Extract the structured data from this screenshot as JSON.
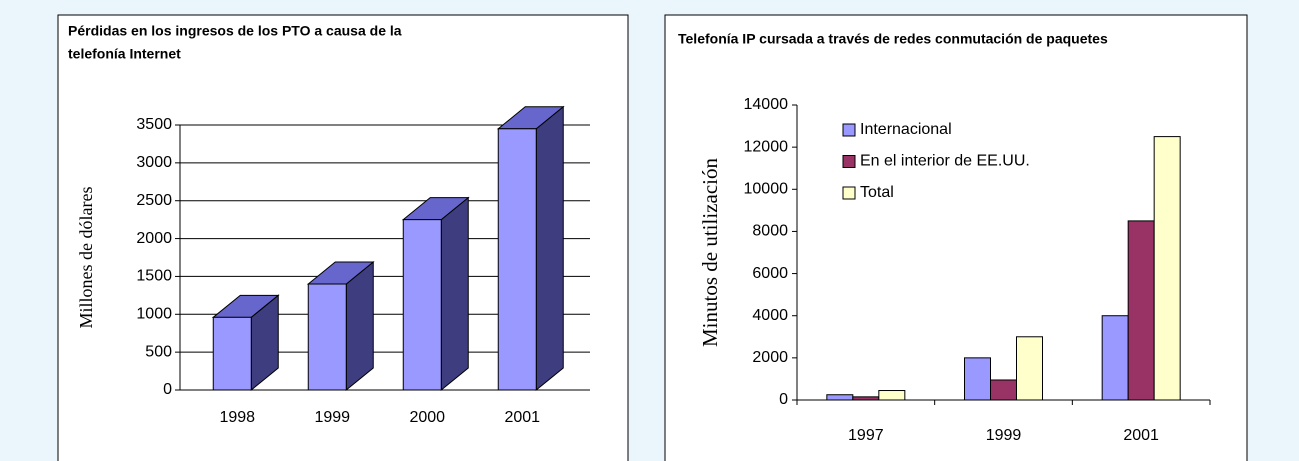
{
  "chart_data": [
    {
      "type": "bar3d",
      "title": [
        "Pérdidas en los ingresos de los PTO a causa de la",
        "telefonía Internet"
      ],
      "y_label": "Millones de dólares",
      "categories": [
        "1998",
        "1999",
        "2000",
        "2001"
      ],
      "values": [
        960,
        1400,
        2250,
        3450
      ],
      "color": "#9999ff",
      "side_color": "#3d3d80",
      "top_color": "#6666cc",
      "ylim": [
        0,
        3500
      ],
      "yticks": [
        0,
        500,
        1000,
        1500,
        2000,
        2500,
        3000,
        3500
      ],
      "grid": true
    },
    {
      "type": "bar",
      "title": [
        "Telefonía IP cursada a través de redes conmutación de paquetes"
      ],
      "y_label": "Minutos de utilización",
      "categories": [
        "1997",
        "1999",
        "2001"
      ],
      "series": [
        {
          "name": "Internacional",
          "color": "#9999ff",
          "values": [
            250,
            2000,
            4000
          ]
        },
        {
          "name": "En el interior de EE.UU.",
          "color": "#993366",
          "values": [
            150,
            950,
            8500
          ]
        },
        {
          "name": "Total",
          "color": "#ffffcc",
          "values": [
            450,
            3000,
            12500
          ]
        }
      ],
      "ylim": [
        0,
        14000
      ],
      "yticks": [
        0,
        2000,
        4000,
        6000,
        8000,
        10000,
        12000,
        14000
      ],
      "grid": false
    }
  ]
}
